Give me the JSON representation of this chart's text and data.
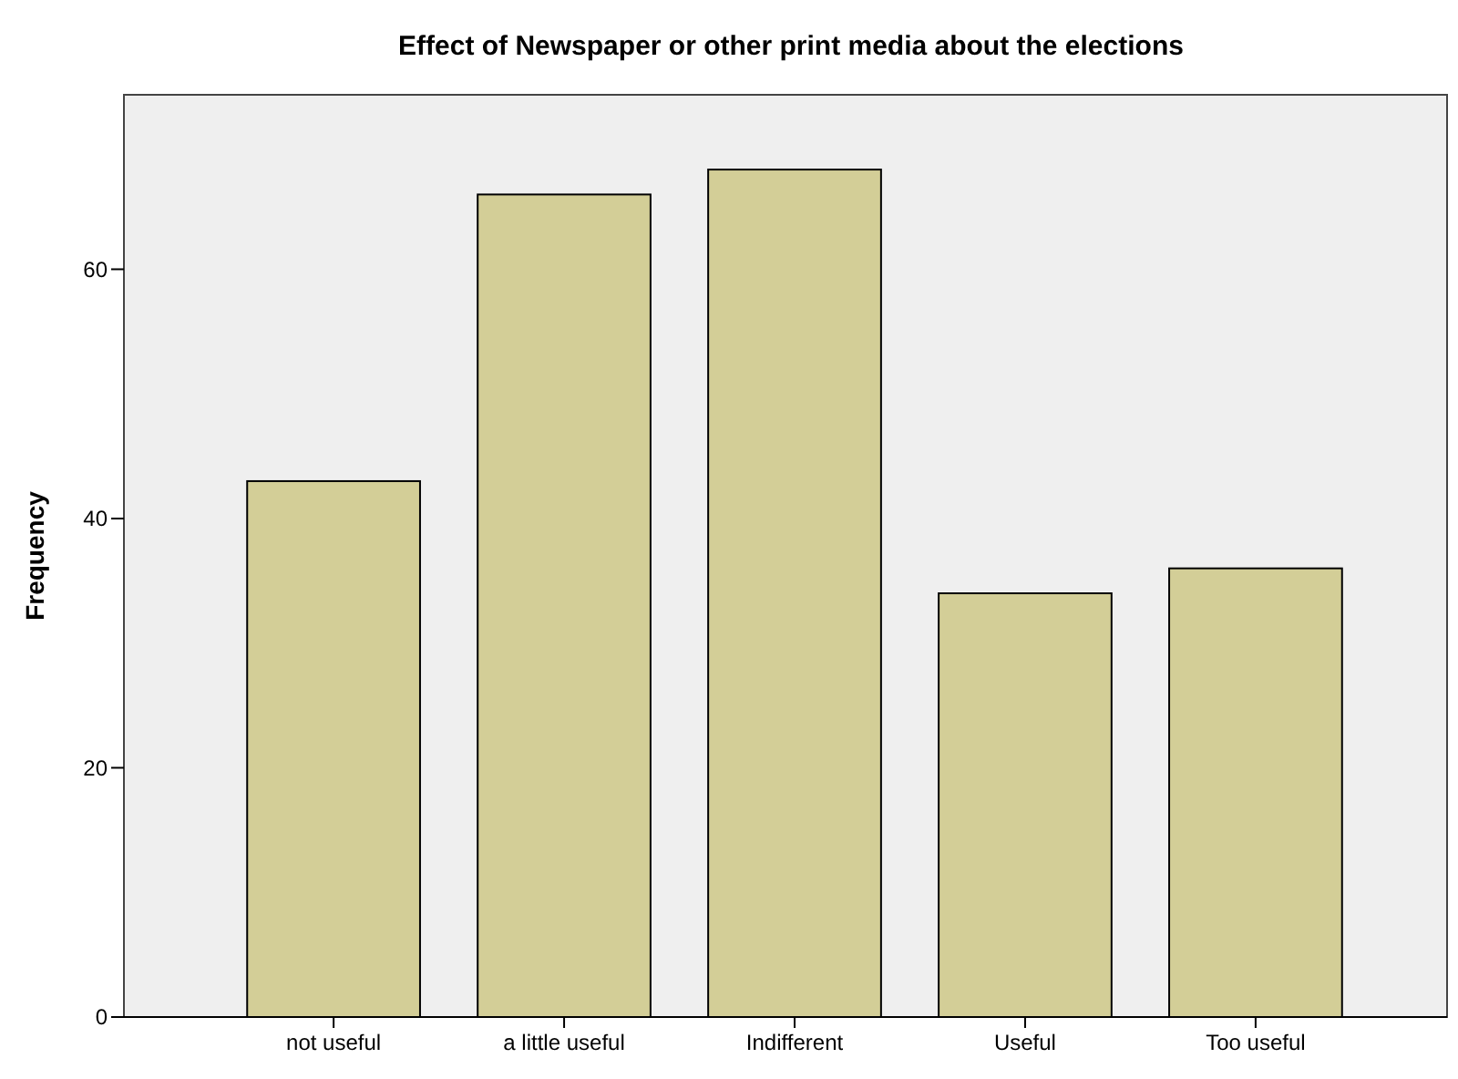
{
  "chart_data": {
    "type": "bar",
    "title": "Effect of Newspaper or other print media about the elections",
    "ylabel": "Frequency",
    "categories": [
      "not useful",
      "a little useful",
      "Indifferent",
      "Useful",
      "Too useful"
    ],
    "values": [
      43,
      66,
      68,
      34,
      36
    ],
    "color": "#d3ce97",
    "ylim": [
      0,
      74
    ],
    "yticks": [
      0,
      20,
      40,
      60
    ],
    "grid": false
  }
}
